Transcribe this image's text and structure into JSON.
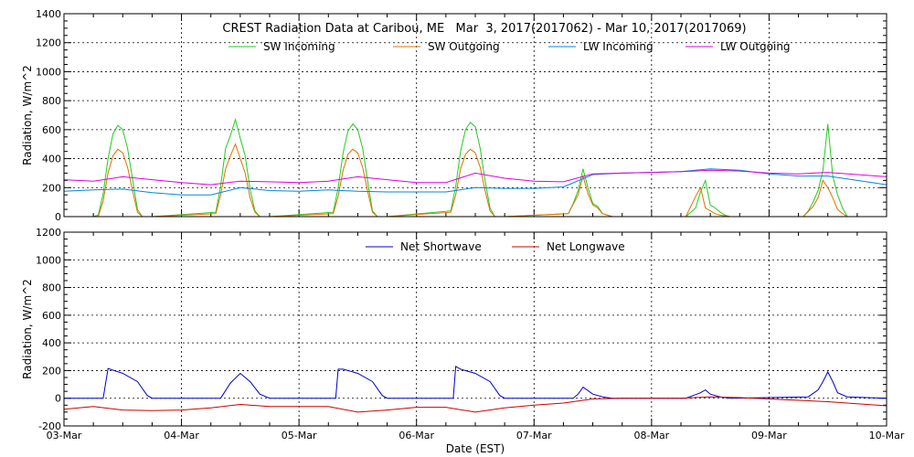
{
  "chart_data": [
    {
      "type": "line",
      "title": "CREST Radiation Data at Caribou, ME   Mar  3, 2017(2017062) - Mar 10, 2017(2017069)",
      "ylabel": "Radiation, W/m^2",
      "xlabel": "",
      "ylim": [
        0,
        1400
      ],
      "yticks": [
        0,
        200,
        400,
        600,
        800,
        1000,
        1200,
        1400
      ],
      "xlim": [
        "2017-03-03",
        "2017-03-10"
      ],
      "grid": true,
      "legend_position": "top",
      "series": [
        {
          "name": "SW Incoming",
          "color": "#22cc22",
          "x": [
            "03-03 00:00",
            "03-03 06:00",
            "03-03 07:00",
            "03-03 08:00",
            "03-03 09:00",
            "03-03 10:00",
            "03-03 11:00",
            "03-03 12:00",
            "03-03 13:00",
            "03-03 14:00",
            "03-03 15:00",
            "03-03 16:00",
            "03-03 17:00",
            "03-03 18:00",
            "03-04 07:00",
            "03-04 08:00",
            "03-04 09:00",
            "03-04 10:00",
            "03-04 11:00",
            "03-04 12:00",
            "03-04 13:00",
            "03-04 14:00",
            "03-04 15:00",
            "03-04 16:00",
            "03-04 18:00",
            "03-05 07:00",
            "03-05 08:00",
            "03-05 09:00",
            "03-05 10:00",
            "03-05 11:00",
            "03-05 12:00",
            "03-05 13:00",
            "03-05 14:00",
            "03-05 15:00",
            "03-05 16:00",
            "03-05 18:00",
            "03-06 07:00",
            "03-06 08:00",
            "03-06 09:00",
            "03-06 10:00",
            "03-06 11:00",
            "03-06 12:00",
            "03-06 13:00",
            "03-06 14:00",
            "03-06 15:00",
            "03-06 16:00",
            "03-06 18:00",
            "03-07 07:00",
            "03-07 08:00",
            "03-07 09:00",
            "03-07 10:00",
            "03-07 11:00",
            "03-07 12:00",
            "03-07 13:00",
            "03-07 14:00",
            "03-07 16:00",
            "03-08 07:00",
            "03-08 09:00",
            "03-08 10:00",
            "03-08 11:00",
            "03-08 12:00",
            "03-08 13:00",
            "03-08 14:00",
            "03-08 15:00",
            "03-08 16:00",
            "03-09 07:00",
            "03-09 08:00",
            "03-09 09:00",
            "03-09 10:00",
            "03-09 11:00",
            "03-09 12:00",
            "03-09 13:00",
            "03-09 14:00",
            "03-09 15:00",
            "03-09 16:00",
            "03-09 18:00",
            "03-10 00:00"
          ],
          "values": [
            0,
            0,
            10,
            160,
            400,
            570,
            630,
            600,
            470,
            260,
            50,
            0,
            0,
            0,
            30,
            210,
            470,
            560,
            670,
            540,
            420,
            190,
            40,
            0,
            0,
            30,
            200,
            440,
            590,
            640,
            600,
            470,
            250,
            40,
            0,
            0,
            40,
            210,
            450,
            600,
            650,
            620,
            470,
            250,
            60,
            0,
            0,
            20,
            90,
            180,
            330,
            200,
            90,
            70,
            20,
            0,
            0,
            60,
            170,
            250,
            80,
            60,
            30,
            10,
            0,
            0,
            40,
            100,
            180,
            320,
            640,
            280,
            150,
            60,
            0,
            0,
            0
          ]
        },
        {
          "name": "SW Outgoing",
          "color": "#e07000",
          "x": [
            "03-03 00:00",
            "03-03 07:00",
            "03-03 08:00",
            "03-03 09:00",
            "03-03 10:00",
            "03-03 11:00",
            "03-03 12:00",
            "03-03 13:00",
            "03-03 14:00",
            "03-03 15:00",
            "03-03 16:00",
            "03-03 18:00",
            "03-04 07:00",
            "03-04 08:00",
            "03-04 09:00",
            "03-04 10:00",
            "03-04 11:00",
            "03-04 12:00",
            "03-04 13:00",
            "03-04 14:00",
            "03-04 15:00",
            "03-04 16:00",
            "03-04 18:00",
            "03-05 07:00",
            "03-05 08:00",
            "03-05 09:00",
            "03-05 10:00",
            "03-05 11:00",
            "03-05 12:00",
            "03-05 13:00",
            "03-05 14:00",
            "03-05 15:00",
            "03-05 16:00",
            "03-05 18:00",
            "03-06 07:00",
            "03-06 08:00",
            "03-06 09:00",
            "03-06 10:00",
            "03-06 11:00",
            "03-06 12:00",
            "03-06 13:00",
            "03-06 14:00",
            "03-06 15:00",
            "03-06 16:00",
            "03-06 18:00",
            "03-07 07:00",
            "03-07 09:00",
            "03-07 10:00",
            "03-07 11:00",
            "03-07 12:00",
            "03-07 13:00",
            "03-07 14:00",
            "03-07 16:00",
            "03-08 07:00",
            "03-08 09:00",
            "03-08 10:00",
            "03-08 11:00",
            "03-08 12:00",
            "03-08 13:00",
            "03-08 14:00",
            "03-08 16:00",
            "03-09 07:00",
            "03-09 09:00",
            "03-09 10:00",
            "03-09 11:00",
            "03-09 12:00",
            "03-09 13:00",
            "03-09 14:00",
            "03-09 15:00",
            "03-09 16:00",
            "03-10 00:00"
          ],
          "values": [
            0,
            0,
            110,
            300,
            420,
            465,
            440,
            340,
            180,
            30,
            0,
            0,
            20,
            150,
            330,
            420,
            500,
            400,
            300,
            130,
            30,
            0,
            0,
            20,
            140,
            320,
            430,
            465,
            440,
            340,
            180,
            30,
            0,
            0,
            30,
            150,
            330,
            430,
            465,
            440,
            340,
            180,
            40,
            0,
            0,
            20,
            150,
            280,
            160,
            80,
            60,
            20,
            0,
            0,
            140,
            200,
            60,
            40,
            20,
            10,
            0,
            0,
            70,
            130,
            250,
            200,
            130,
            50,
            20,
            0,
            0
          ]
        },
        {
          "name": "LW Incoming",
          "color": "#0088dd",
          "x": [
            "03-03 00:00",
            "03-03 06:00",
            "03-03 12:00",
            "03-03 18:00",
            "03-04 00:00",
            "03-04 06:00",
            "03-04 12:00",
            "03-04 18:00",
            "03-05 00:00",
            "03-05 06:00",
            "03-05 12:00",
            "03-05 18:00",
            "03-06 00:00",
            "03-06 06:00",
            "03-06 12:00",
            "03-06 18:00",
            "03-07 00:00",
            "03-07 06:00",
            "03-07 12:00",
            "03-07 18:00",
            "03-08 00:00",
            "03-08 06:00",
            "03-08 12:00",
            "03-08 18:00",
            "03-09 00:00",
            "03-09 06:00",
            "03-09 12:00",
            "03-09 18:00",
            "03-10 00:00"
          ],
          "values": [
            175,
            185,
            190,
            165,
            150,
            150,
            200,
            180,
            175,
            185,
            175,
            170,
            170,
            170,
            200,
            195,
            195,
            205,
            290,
            300,
            305,
            310,
            330,
            320,
            295,
            280,
            280,
            250,
            220
          ]
        },
        {
          "name": "LW Outgoing",
          "color": "#dd00dd",
          "x": [
            "03-03 00:00",
            "03-03 06:00",
            "03-03 12:00",
            "03-03 18:00",
            "03-04 00:00",
            "03-04 06:00",
            "03-04 12:00",
            "03-04 18:00",
            "03-05 00:00",
            "03-05 06:00",
            "03-05 12:00",
            "03-05 18:00",
            "03-06 00:00",
            "03-06 06:00",
            "03-06 12:00",
            "03-06 18:00",
            "03-07 00:00",
            "03-07 06:00",
            "03-07 12:00",
            "03-07 18:00",
            "03-08 00:00",
            "03-08 06:00",
            "03-08 12:00",
            "03-08 18:00",
            "03-09 00:00",
            "03-09 06:00",
            "03-09 12:00",
            "03-09 18:00",
            "03-10 00:00"
          ],
          "values": [
            255,
            245,
            275,
            255,
            235,
            220,
            245,
            240,
            235,
            245,
            275,
            255,
            235,
            235,
            300,
            265,
            245,
            240,
            295,
            300,
            305,
            310,
            320,
            315,
            300,
            295,
            305,
            290,
            275
          ]
        }
      ]
    },
    {
      "type": "line",
      "title": "",
      "ylabel": "Radiation, W/m^2",
      "xlabel": "Date (EST)",
      "ylim": [
        -200,
        1200
      ],
      "yticks": [
        -200,
        0,
        200,
        400,
        600,
        800,
        1000,
        1200
      ],
      "xlim": [
        "2017-03-03",
        "2017-03-10"
      ],
      "xtick_labels": [
        "03-Mar",
        "04-Mar",
        "05-Mar",
        "06-Mar",
        "07-Mar",
        "08-Mar",
        "09-Mar",
        "10-Mar"
      ],
      "grid": true,
      "legend_position": "top",
      "series": [
        {
          "name": "Net Shortwave",
          "color": "#0000cc",
          "x": [
            "03-03 00:00",
            "03-03 08:00",
            "03-03 09:00",
            "03-03 12:00",
            "03-03 15:00",
            "03-03 17:00",
            "03-03 18:00",
            "03-04 08:00",
            "03-04 10:00",
            "03-04 12:00",
            "03-04 14:00",
            "03-04 16:00",
            "03-04 18:00",
            "03-05 07:30",
            "03-05 08:00",
            "03-05 09:00",
            "03-05 12:00",
            "03-05 15:00",
            "03-05 17:00",
            "03-05 18:00",
            "03-06 07:30",
            "03-06 08:00",
            "03-06 09:00",
            "03-06 12:00",
            "03-06 15:00",
            "03-06 17:00",
            "03-06 18:00",
            "03-07 08:00",
            "03-07 09:00",
            "03-07 10:00",
            "03-07 12:00",
            "03-07 14:00",
            "03-07 16:00",
            "03-08 07:00",
            "03-08 10:00",
            "03-08 11:00",
            "03-08 12:00",
            "03-08 14:00",
            "03-08 16:00",
            "03-09 08:00",
            "03-09 10:00",
            "03-09 11:00",
            "03-09 12:00",
            "03-09 13:00",
            "03-09 14:00",
            "03-09 16:00",
            "03-10 00:00"
          ],
          "values": [
            0,
            0,
            215,
            180,
            120,
            20,
            0,
            0,
            110,
            180,
            120,
            30,
            0,
            0,
            210,
            210,
            180,
            120,
            20,
            0,
            0,
            230,
            210,
            180,
            120,
            20,
            0,
            0,
            30,
            80,
            30,
            10,
            0,
            0,
            40,
            60,
            30,
            10,
            0,
            10,
            60,
            120,
            190,
            120,
            40,
            10,
            0
          ]
        },
        {
          "name": "Net Longwave",
          "color": "#cc0000",
          "x": [
            "03-03 00:00",
            "03-03 06:00",
            "03-03 12:00",
            "03-03 18:00",
            "03-04 00:00",
            "03-04 06:00",
            "03-04 12:00",
            "03-04 18:00",
            "03-05 00:00",
            "03-05 06:00",
            "03-05 12:00",
            "03-05 18:00",
            "03-06 00:00",
            "03-06 06:00",
            "03-06 12:00",
            "03-06 18:00",
            "03-07 00:00",
            "03-07 06:00",
            "03-07 12:00",
            "03-07 18:00",
            "03-08 00:00",
            "03-08 06:00",
            "03-08 12:00",
            "03-08 18:00",
            "03-09 00:00",
            "03-09 06:00",
            "03-09 12:00",
            "03-09 18:00",
            "03-10 00:00"
          ],
          "values": [
            -80,
            -60,
            -85,
            -90,
            -85,
            -70,
            -45,
            -60,
            -60,
            -60,
            -100,
            -85,
            -65,
            -65,
            -100,
            -70,
            -50,
            -35,
            -5,
            0,
            0,
            0,
            10,
            5,
            -5,
            -15,
            -25,
            -40,
            -55
          ]
        }
      ]
    }
  ]
}
